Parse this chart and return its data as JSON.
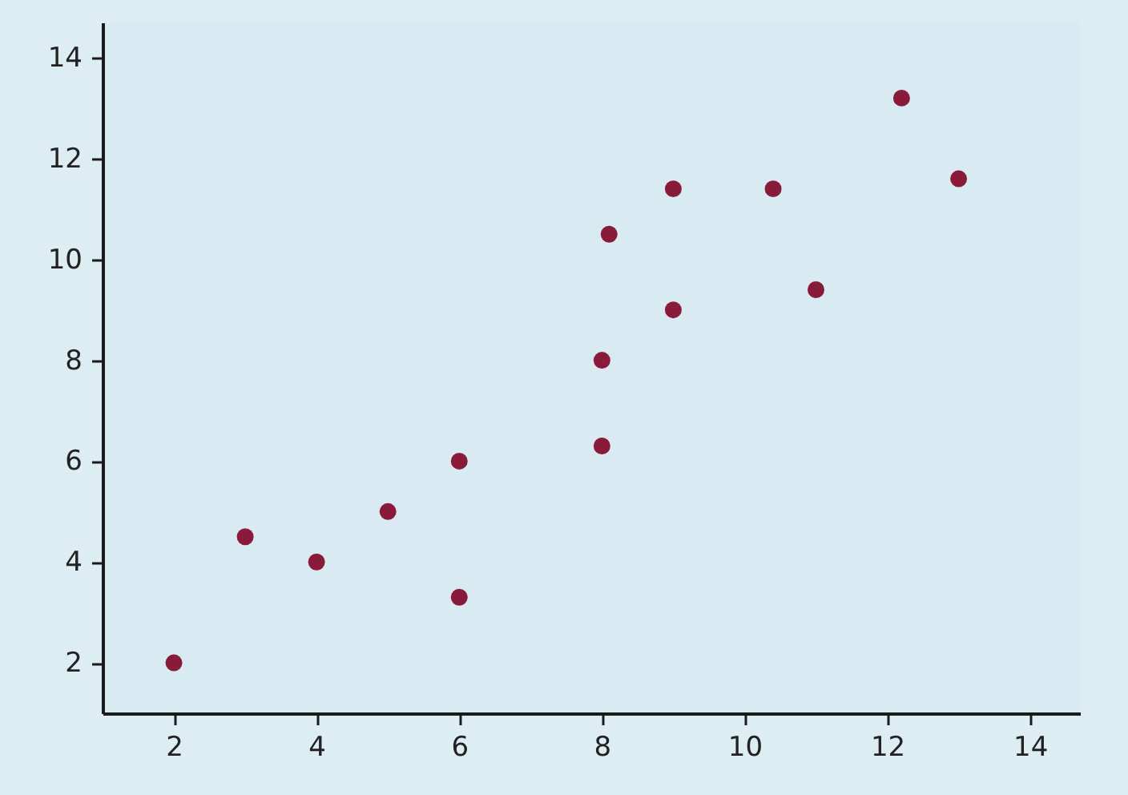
{
  "chart_data": {
    "type": "scatter",
    "x": [
      2,
      3,
      4,
      5,
      6,
      6,
      8,
      8,
      8.1,
      9,
      9,
      10.4,
      11,
      12.2,
      13
    ],
    "values": [
      2,
      4.5,
      4,
      5,
      6,
      3.3,
      6.3,
      8,
      10.5,
      11.4,
      9,
      11.4,
      9.4,
      13.2,
      11.6
    ],
    "color": "#8b1a3a",
    "marker": "circle",
    "xlim": [
      1,
      14.7
    ],
    "ylim": [
      1,
      14.7
    ],
    "xticks": [
      2,
      4,
      6,
      8,
      10,
      12,
      14
    ],
    "yticks": [
      2,
      4,
      6,
      8,
      10,
      12,
      14
    ],
    "grid": false
  }
}
